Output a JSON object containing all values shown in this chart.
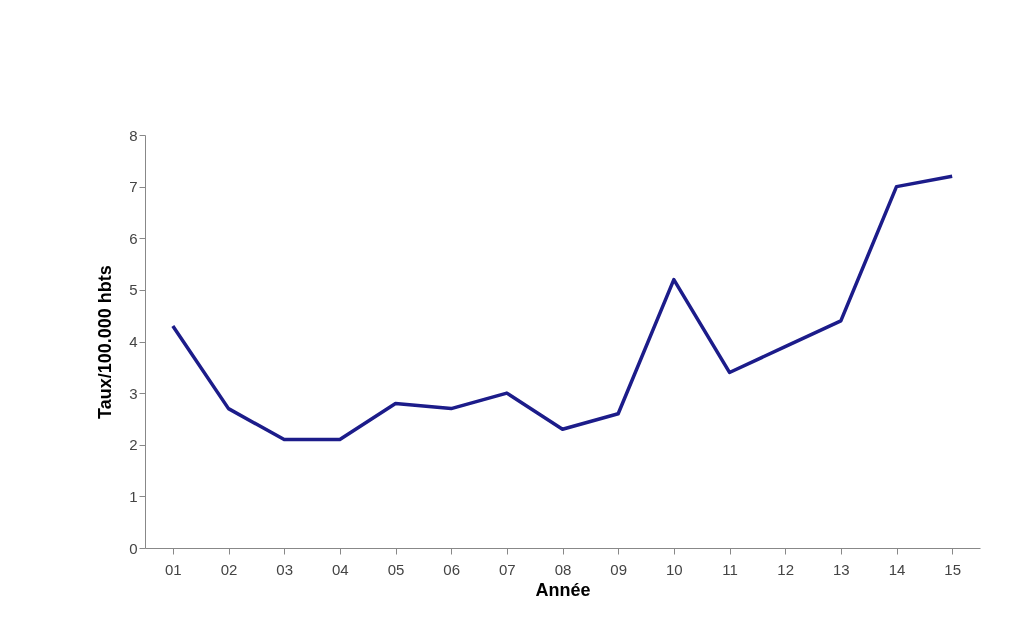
{
  "chart_data": {
    "type": "line",
    "xlabel": "Année",
    "ylabel": "Taux/100.000 hbts",
    "categories": [
      "01",
      "02",
      "03",
      "04",
      "05",
      "06",
      "07",
      "08",
      "09",
      "10",
      "11",
      "12",
      "13",
      "14",
      "15"
    ],
    "series": [
      {
        "color": "#1c1c8a",
        "values": [
          4.3,
          2.7,
          2.1,
          2.1,
          2.8,
          2.7,
          3.0,
          2.3,
          2.6,
          5.2,
          3.4,
          3.9,
          4.4,
          7.0,
          7.2
        ]
      }
    ],
    "ylim": [
      0,
      8
    ],
    "yticks": [
      0,
      1,
      2,
      3,
      4,
      5,
      6,
      7,
      8
    ],
    "grid": false,
    "legend": false,
    "marker": "none",
    "line_style": "solid"
  }
}
